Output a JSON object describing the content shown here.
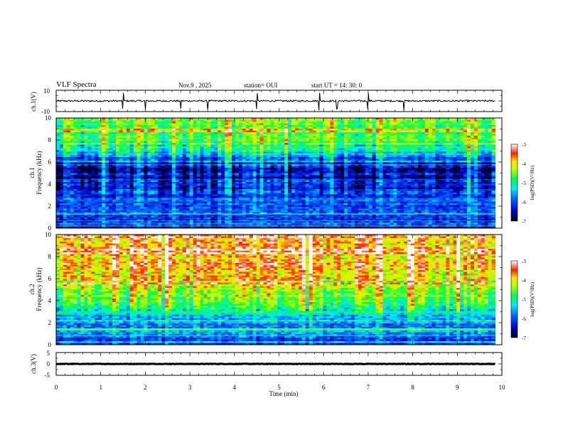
{
  "header": {
    "title": "VLF Spectra",
    "date": "Nov.9 , 2025",
    "station": "station= OUI",
    "start": "start UT = 14: 30: 0"
  },
  "chart_data": [
    {
      "type": "line",
      "panel": "ch1-waveform",
      "ylabel": "ch.1(V)",
      "ylim": [
        -10,
        10
      ],
      "y_ticks": [
        "10",
        "-10"
      ],
      "xlim": [
        0,
        10
      ],
      "baseline": 0,
      "spikes_min": [
        1.5,
        2.0,
        2.8,
        3.4,
        4.5,
        5.9,
        6.3,
        7.0,
        7.8
      ]
    },
    {
      "type": "heatmap",
      "panel": "ch1-spectrogram",
      "ylabel": "ch.1\nFrequency (kHz)",
      "ylabel_line1": "ch.1",
      "ylabel_line2": "Frequency (kHz)",
      "ylim": [
        0,
        10
      ],
      "y_ticks": [
        "0",
        "2",
        "4",
        "6",
        "8",
        "10"
      ],
      "xlim": [
        0,
        10
      ],
      "color_range": [
        -7,
        -3
      ],
      "colorbar_ticks": [
        "-3",
        "-4",
        "-5",
        "-6",
        "-7"
      ],
      "colorbar_label": "log(PSD)(V²/Hz)",
      "profile": [
        {
          "f": 0,
          "v": -6.4
        },
        {
          "f": 1,
          "v": -6.0
        },
        {
          "f": 2,
          "v": -5.9
        },
        {
          "f": 3,
          "v": -6.1
        },
        {
          "f": 4,
          "v": -6.4
        },
        {
          "f": 5,
          "v": -6.9
        },
        {
          "f": 6,
          "v": -6.3
        },
        {
          "f": 7,
          "v": -5.2
        },
        {
          "f": 8,
          "v": -4.8
        },
        {
          "f": 9,
          "v": -4.7
        },
        {
          "f": 10,
          "v": -4.6
        }
      ]
    },
    {
      "type": "heatmap",
      "panel": "ch2-spectrogram",
      "ylabel": "ch.2\nFrequency (kHz)",
      "ylabel_line1": "ch.2",
      "ylabel_line2": "Frequency (kHz)",
      "ylim": [
        0,
        10
      ],
      "y_ticks": [
        "0",
        "2",
        "4",
        "6",
        "8",
        "10"
      ],
      "xlim": [
        0,
        10
      ],
      "color_range": [
        -7,
        -3
      ],
      "colorbar_ticks": [
        "-3",
        "-4",
        "-5",
        "-6",
        "-7"
      ],
      "colorbar_label": "log(PSD)(V²/Hz)",
      "profile": [
        {
          "f": 0,
          "v": -6.2
        },
        {
          "f": 1,
          "v": -5.6
        },
        {
          "f": 2,
          "v": -5.7
        },
        {
          "f": 3,
          "v": -5.2
        },
        {
          "f": 4,
          "v": -4.6
        },
        {
          "f": 5,
          "v": -4.3
        },
        {
          "f": 6,
          "v": -4.0
        },
        {
          "f": 7,
          "v": -3.9
        },
        {
          "f": 8,
          "v": -3.8
        },
        {
          "f": 9,
          "v": -3.8
        },
        {
          "f": 10,
          "v": -3.8
        }
      ]
    },
    {
      "type": "line",
      "panel": "ch3-waveform",
      "ylabel": "ch.3(V)",
      "ylim": [
        -5,
        5
      ],
      "y_ticks": [
        "5",
        "0",
        "-5"
      ],
      "xlim": [
        0,
        10
      ],
      "baseline": 0,
      "xlabel": "Time (min)",
      "x_ticks": [
        "0",
        "1",
        "2",
        "3",
        "4",
        "5",
        "6",
        "7",
        "8",
        "9",
        "10"
      ]
    }
  ]
}
